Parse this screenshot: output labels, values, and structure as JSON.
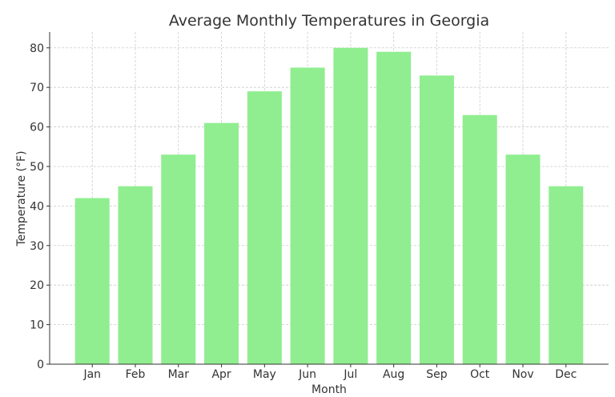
{
  "chart_data": {
    "type": "bar",
    "title": "Average Monthly Temperatures in Georgia",
    "xlabel": "Month",
    "ylabel": "Temperature (°F)",
    "categories": [
      "Jan",
      "Feb",
      "Mar",
      "Apr",
      "May",
      "Jun",
      "Jul",
      "Aug",
      "Sep",
      "Oct",
      "Nov",
      "Dec"
    ],
    "values": [
      42,
      45,
      53,
      61,
      69,
      75,
      80,
      79,
      73,
      63,
      53,
      45
    ],
    "ylim": [
      0,
      84
    ],
    "yticks": [
      0,
      10,
      20,
      30,
      40,
      50,
      60,
      70,
      80
    ],
    "grid": true,
    "bar_color": "#90EE90"
  }
}
